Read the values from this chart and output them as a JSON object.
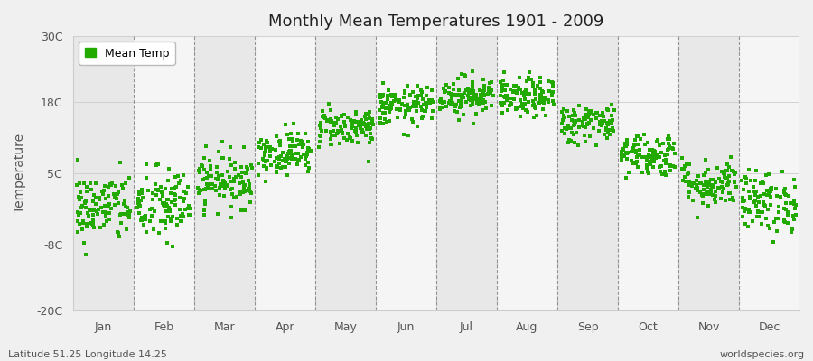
{
  "title": "Monthly Mean Temperatures 1901 - 2009",
  "ylabel": "Temperature",
  "subtitle_left": "Latitude 51.25 Longitude 14.25",
  "subtitle_right": "worldspecies.org",
  "legend_label": "Mean Temp",
  "dot_color": "#22aa00",
  "background_color": "#f0f0f0",
  "plot_bg_light": "#f5f5f5",
  "plot_bg_dark": "#e8e8e8",
  "ylim": [
    -20,
    30
  ],
  "yticks": [
    -20,
    -8,
    5,
    18,
    30
  ],
  "ytick_labels": [
    "-20C",
    "-8C",
    "5C",
    "18C",
    "30C"
  ],
  "months": [
    "Jan",
    "Feb",
    "Mar",
    "Apr",
    "May",
    "Jun",
    "Jul",
    "Aug",
    "Sep",
    "Oct",
    "Nov",
    "Dec"
  ],
  "month_means": [
    -1.2,
    -0.8,
    3.8,
    8.8,
    13.5,
    17.2,
    19.2,
    18.8,
    14.2,
    8.5,
    3.2,
    -0.2
  ],
  "month_stds": [
    3.2,
    3.5,
    2.5,
    2.0,
    1.8,
    1.8,
    1.8,
    1.8,
    1.8,
    2.0,
    2.2,
    2.8
  ],
  "n_years": 109,
  "seed": 42,
  "marker_size": 6
}
